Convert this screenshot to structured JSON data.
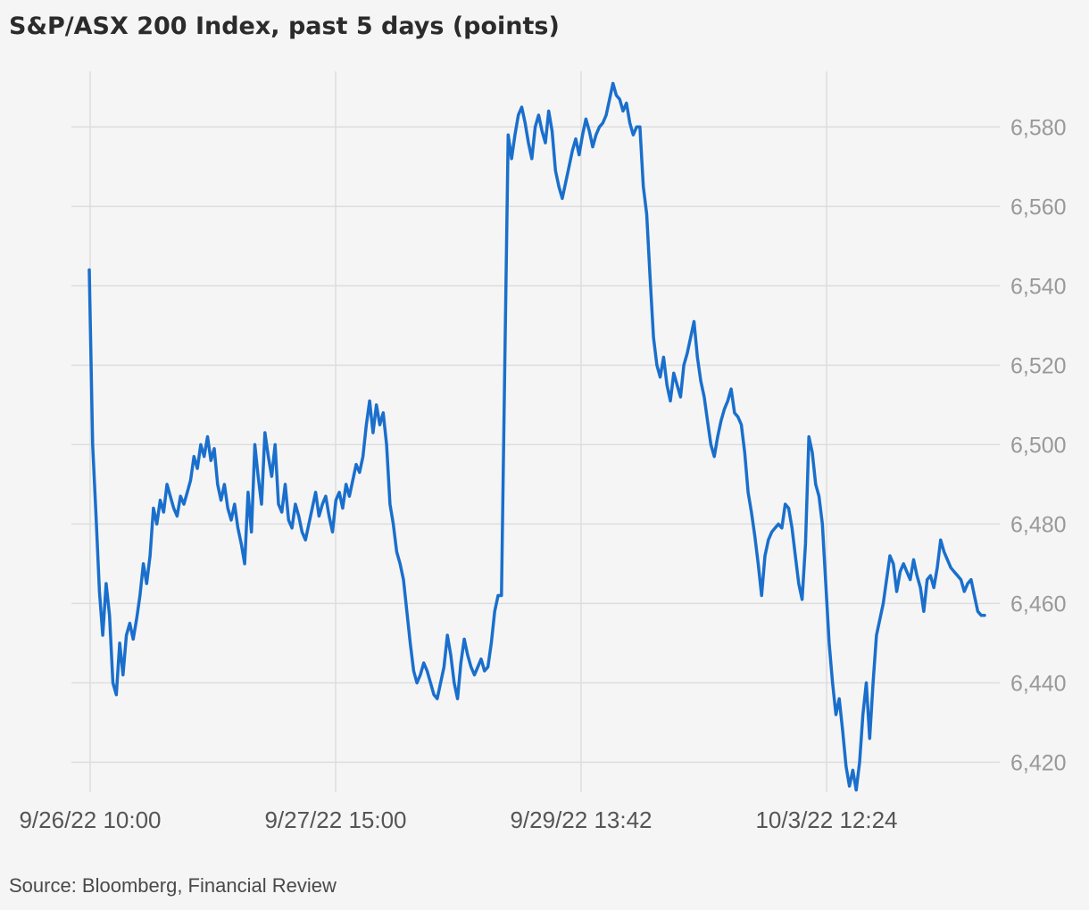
{
  "chart_data": {
    "type": "line",
    "title": "S&P/ASX 200 Index, past 5 days (points)",
    "source": "Source: Bloomberg, Financial Review",
    "xlabel": "",
    "ylabel": "",
    "ylim": [
      6412,
      6594
    ],
    "y_ticks": [
      6420,
      6440,
      6460,
      6480,
      6500,
      6520,
      6540,
      6560,
      6580
    ],
    "y_tick_labels": [
      "6,420",
      "6,440",
      "6,460",
      "6,480",
      "6,500",
      "6,520",
      "6,540",
      "6,560",
      "6,580"
    ],
    "x_tick_labels": [
      "9/26/22 10:00",
      "9/27/22 15:00",
      "9/29/22 13:42",
      "10/3/22 12:24"
    ],
    "x_tick_positions": [
      0,
      0.25,
      0.5,
      0.75
    ],
    "grid": true,
    "series": [
      {
        "color": "#1a6fcc",
        "values": [
          6544,
          6500,
          6482,
          6463,
          6452,
          6465,
          6457,
          6440,
          6437,
          6450,
          6442,
          6452,
          6455,
          6451,
          6456,
          6462,
          6470,
          6465,
          6472,
          6484,
          6480,
          6486,
          6483,
          6490,
          6487,
          6484,
          6482,
          6487,
          6485,
          6488,
          6491,
          6497,
          6494,
          6500,
          6497,
          6502,
          6496,
          6499,
          6490,
          6486,
          6490,
          6484,
          6481,
          6485,
          6479,
          6475,
          6470,
          6488,
          6478,
          6500,
          6492,
          6485,
          6503,
          6497,
          6492,
          6500,
          6485,
          6483,
          6490,
          6481,
          6479,
          6485,
          6482,
          6478,
          6476,
          6480,
          6484,
          6488,
          6482,
          6485,
          6487,
          6482,
          6478,
          6486,
          6488,
          6484,
          6490,
          6487,
          6491,
          6495,
          6493,
          6497,
          6505,
          6511,
          6503,
          6510,
          6505,
          6508,
          6500,
          6485,
          6480,
          6473,
          6470,
          6466,
          6458,
          6450,
          6443,
          6440,
          6442,
          6445,
          6443,
          6440,
          6437,
          6436,
          6440,
          6444,
          6452,
          6447,
          6440,
          6436,
          6445,
          6451,
          6447,
          6444,
          6442,
          6444,
          6446,
          6443,
          6444,
          6450,
          6458,
          6462,
          6462,
          6520,
          6578,
          6572,
          6578,
          6583,
          6585,
          6581,
          6576,
          6572,
          6580,
          6583,
          6579,
          6576,
          6584,
          6579,
          6569,
          6565,
          6562,
          6566,
          6570,
          6574,
          6577,
          6573,
          6578,
          6582,
          6579,
          6575,
          6578,
          6580,
          6581,
          6583,
          6587,
          6591,
          6588,
          6587,
          6584,
          6586,
          6581,
          6578,
          6580,
          6580,
          6565,
          6558,
          6542,
          6527,
          6520,
          6517,
          6522,
          6515,
          6511,
          6518,
          6515,
          6512,
          6520,
          6523,
          6527,
          6531,
          6522,
          6516,
          6512,
          6506,
          6500,
          6497,
          6502,
          6506,
          6509,
          6511,
          6514,
          6508,
          6507,
          6505,
          6498,
          6488,
          6483,
          6477,
          6470,
          6462,
          6472,
          6476,
          6478,
          6479,
          6480,
          6479,
          6485,
          6484,
          6479,
          6472,
          6465,
          6461,
          6475,
          6502,
          6498,
          6490,
          6487,
          6480,
          6465,
          6450,
          6440,
          6432,
          6436,
          6428,
          6419,
          6414,
          6418,
          6413,
          6420,
          6432,
          6440,
          6426,
          6440,
          6452,
          6456,
          6460,
          6466,
          6472,
          6470,
          6463,
          6468,
          6470,
          6468,
          6466,
          6471,
          6467,
          6464,
          6458,
          6466,
          6467,
          6464,
          6469,
          6476,
          6473,
          6471,
          6469,
          6468,
          6467,
          6466,
          6463,
          6465,
          6466,
          6462,
          6458,
          6457,
          6457
        ]
      }
    ]
  }
}
